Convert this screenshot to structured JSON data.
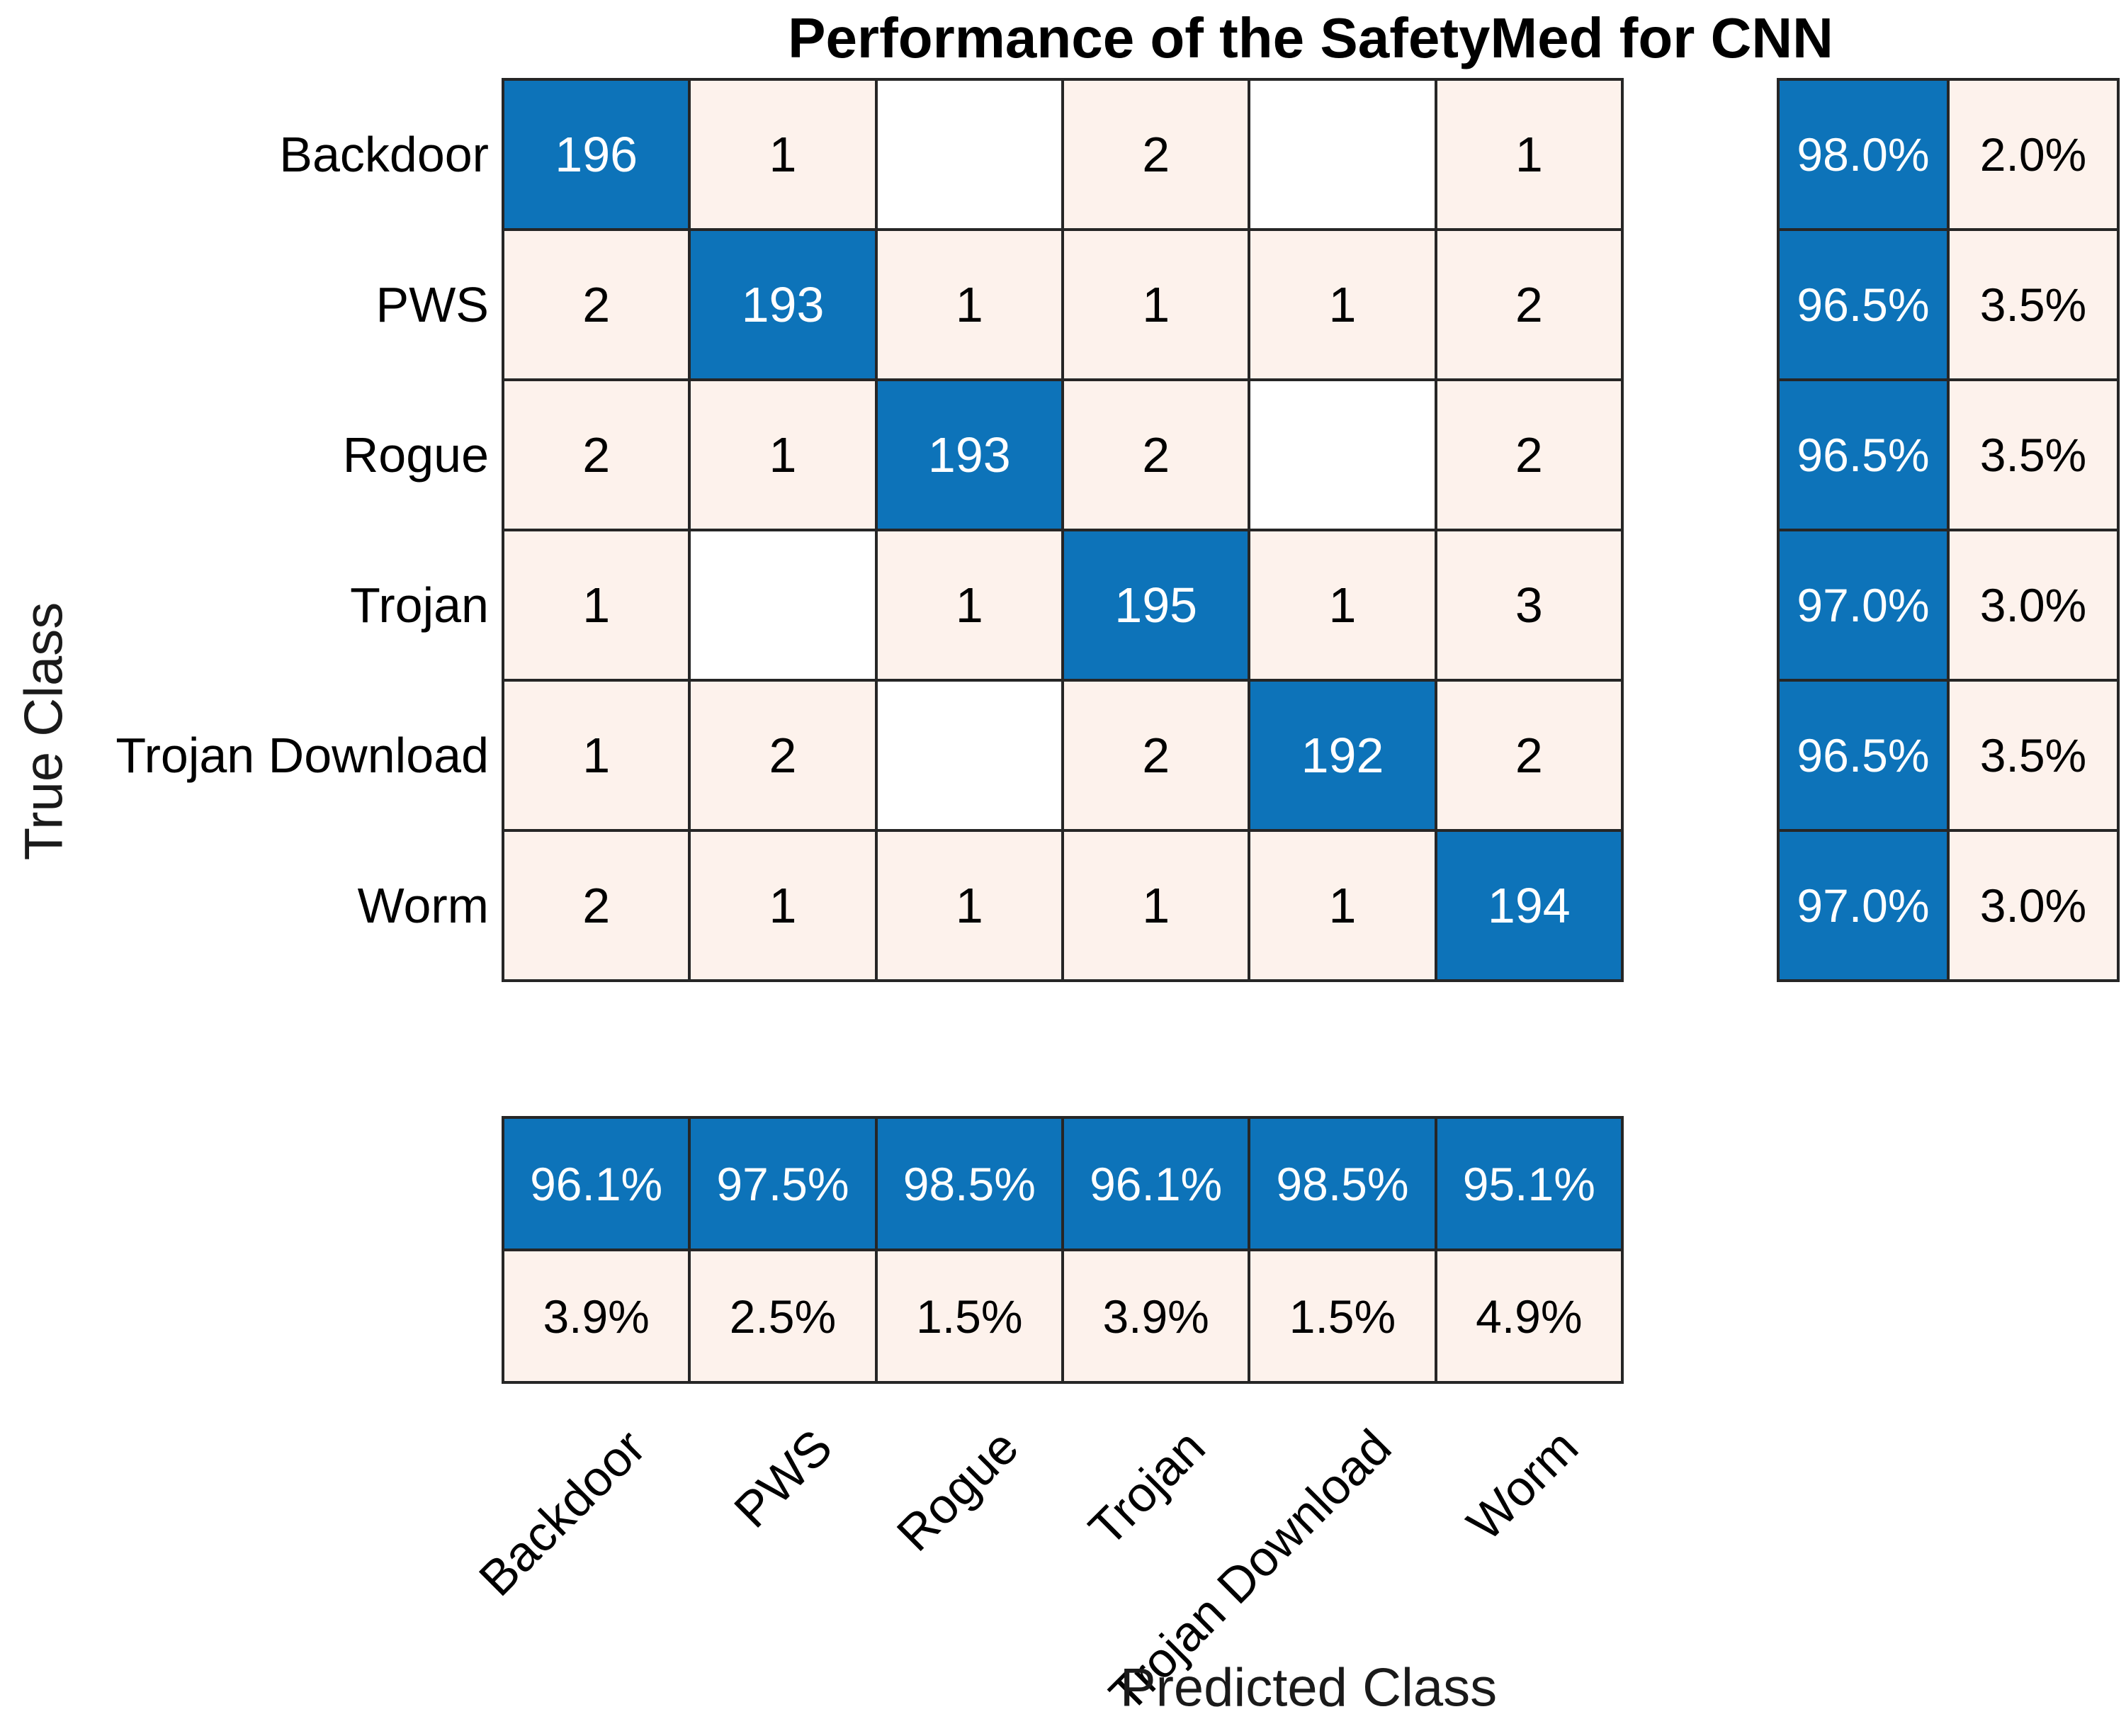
{
  "title": "Performance of the SafetyMed for CNN",
  "axes": {
    "xlabel": "Predicted Class",
    "ylabel": "True Class"
  },
  "colors": {
    "diagonal_blue": "#0d73b9",
    "off_diagonal_pink": "#fdf2ec",
    "zero_cell_white": "#ffffff",
    "grid_line": "#262626",
    "text_on_blue": "#ffffff",
    "text_on_light": "#000000"
  },
  "chart_data": {
    "type": "heatmap",
    "subtype": "confusion-matrix",
    "title": "Performance of the SafetyMed for CNN",
    "xlabel": "Predicted Class",
    "ylabel": "True Class",
    "legend_position": "none",
    "grid": true,
    "classes": [
      "Backdoor",
      "PWS",
      "Rogue",
      "Trojan",
      "Trojan Download",
      "Worm"
    ],
    "matrix": [
      [
        196,
        1,
        0,
        2,
        0,
        1
      ],
      [
        2,
        193,
        1,
        1,
        1,
        2
      ],
      [
        2,
        1,
        193,
        2,
        0,
        2
      ],
      [
        1,
        0,
        1,
        195,
        1,
        3
      ],
      [
        1,
        2,
        0,
        2,
        192,
        2
      ],
      [
        2,
        1,
        1,
        1,
        1,
        194
      ]
    ],
    "zero_cells_shown_blank": true,
    "row_summary": {
      "correct": [
        "98.0%",
        "96.5%",
        "96.5%",
        "97.0%",
        "96.5%",
        "97.0%"
      ],
      "incorrect": [
        "2.0%",
        "3.5%",
        "3.5%",
        "3.0%",
        "3.5%",
        "3.0%"
      ]
    },
    "col_summary": {
      "correct": [
        "96.1%",
        "97.5%",
        "98.5%",
        "96.1%",
        "98.5%",
        "95.1%"
      ],
      "incorrect": [
        "3.9%",
        "2.5%",
        "1.5%",
        "3.9%",
        "1.5%",
        "4.9%"
      ]
    }
  }
}
